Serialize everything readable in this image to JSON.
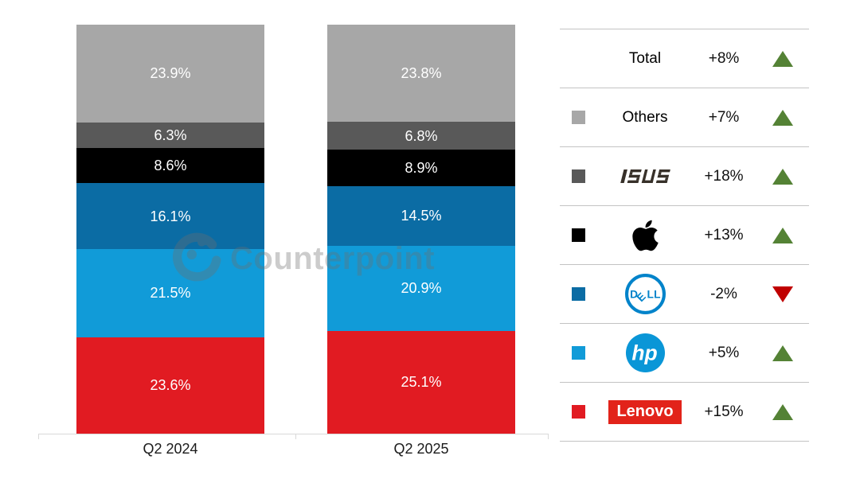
{
  "watermark": {
    "text": "Counterpoint"
  },
  "colors": {
    "others": "#a7a7a7",
    "asus": "#595959",
    "apple": "#000000",
    "dell": "#0b6ca4",
    "hp": "#119bd8",
    "lenovo": "#e11b22",
    "up": "#548235",
    "down": "#c00000",
    "axis": "#d9d9d9",
    "divider": "#c3c3c3",
    "dell_logo": "#0083ca",
    "hp_logo": "#0a96d7",
    "lenovo_logo": "#e2231a",
    "asus_logo": "#373029"
  },
  "chart_data": {
    "type": "bar",
    "subtype": "stacked-100-percent",
    "title": "",
    "categories": [
      "Q2 2024",
      "Q2 2025"
    ],
    "series": [
      {
        "name": "Lenovo",
        "color_key": "lenovo",
        "values": [
          23.6,
          25.1
        ]
      },
      {
        "name": "HP",
        "color_key": "hp",
        "values": [
          21.5,
          20.9
        ]
      },
      {
        "name": "Dell",
        "color_key": "dell",
        "values": [
          16.1,
          14.5
        ]
      },
      {
        "name": "Apple",
        "color_key": "apple",
        "values": [
          8.6,
          8.9
        ]
      },
      {
        "name": "ASUS",
        "color_key": "asus",
        "values": [
          6.3,
          6.8
        ]
      },
      {
        "name": "Others",
        "color_key": "others",
        "values": [
          23.9,
          23.8
        ]
      }
    ],
    "value_suffix": "%",
    "ylim": [
      0,
      100
    ],
    "grid": false,
    "legend_position": "right"
  },
  "legend": {
    "rows": [
      {
        "label": "Total",
        "display": "text",
        "swatch": null,
        "change": "+8%",
        "direction": "up"
      },
      {
        "label": "Others",
        "display": "text",
        "swatch": "others",
        "change": "+7%",
        "direction": "up"
      },
      {
        "label": "ASUS",
        "display": "logo",
        "logo": "asus",
        "swatch": "asus",
        "change": "+18%",
        "direction": "up"
      },
      {
        "label": "Apple",
        "display": "logo",
        "logo": "apple",
        "swatch": "apple",
        "change": "+13%",
        "direction": "up"
      },
      {
        "label": "Dell",
        "display": "logo",
        "logo": "dell",
        "swatch": "dell",
        "change": "-2%",
        "direction": "down"
      },
      {
        "label": "HP",
        "display": "logo",
        "logo": "hp",
        "swatch": "hp",
        "change": "+5%",
        "direction": "up"
      },
      {
        "label": "Lenovo",
        "display": "logo",
        "logo": "lenovo",
        "swatch": "lenovo",
        "change": "+15%",
        "direction": "up"
      }
    ]
  }
}
